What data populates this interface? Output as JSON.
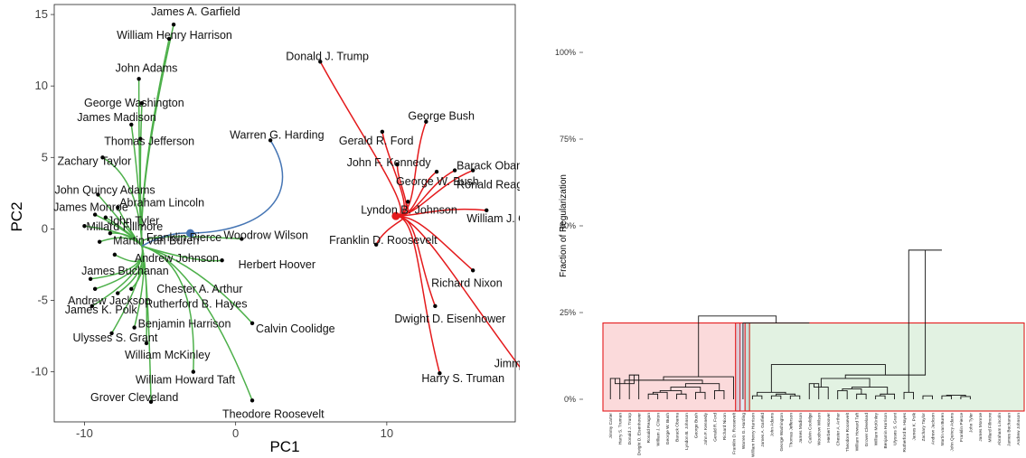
{
  "chart_data": [
    {
      "type": "scatter",
      "xlabel": "PC1",
      "ylabel": "PC2",
      "xlim": [
        -12,
        18.5
      ],
      "ylim": [
        -13.5,
        15.7
      ],
      "xticks": [
        -10,
        0,
        10
      ],
      "yticks": [
        -10,
        -5,
        0,
        5,
        10,
        15
      ],
      "colors": {
        "green": "#4db04a",
        "blue": "#4575b4",
        "red": "#e41a1c"
      },
      "points": [
        {
          "label": "James A. Garfield",
          "x": -4.1,
          "y": 14.3,
          "group": "green",
          "dx": -25,
          "dy": -10
        },
        {
          "label": "William Henry Harrison",
          "x": -4.4,
          "y": 13.3,
          "group": "green",
          "dx": -58,
          "dy": 0
        },
        {
          "label": "John Adams",
          "x": -6.4,
          "y": 10.5,
          "group": "green",
          "dx": -26,
          "dy": -8
        },
        {
          "label": "George Washington",
          "x": -6.2,
          "y": 8.8,
          "group": "green",
          "dx": -64,
          "dy": 4
        },
        {
          "label": "James Madison",
          "x": -6.9,
          "y": 7.3,
          "group": "green",
          "dx": -60,
          "dy": -4
        },
        {
          "label": "Thomas Jefferson",
          "x": -6.3,
          "y": 6.3,
          "group": "green",
          "dx": -40,
          "dy": 7
        },
        {
          "label": "Zachary Taylor",
          "x": -8.8,
          "y": 5.0,
          "group": "green",
          "dx": -50,
          "dy": 8
        },
        {
          "label": "John Quincy Adams",
          "x": -9.1,
          "y": 2.4,
          "group": "green",
          "dx": -48,
          "dy": -1
        },
        {
          "label": "James Monroe",
          "x": -9.3,
          "y": 1.0,
          "group": "green",
          "dx": -46,
          "dy": -4
        },
        {
          "label": "Abraham Lincoln",
          "x": -7.8,
          "y": 1.5,
          "group": "green",
          "dx": 2,
          "dy": -1
        },
        {
          "label": "John Tyler",
          "x": -8.6,
          "y": 0.8,
          "group": "green",
          "dx": 2,
          "dy": 8
        },
        {
          "label": "Millard Fillmore",
          "x": -10.0,
          "y": 0.2,
          "group": "green",
          "dx": 2,
          "dy": 5
        },
        {
          "label": "Franklin Pierce",
          "x": -8.3,
          "y": -0.3,
          "group": "green",
          "dx": 40,
          "dy": 9
        },
        {
          "label": "Martin van Buren",
          "x": -9.0,
          "y": -0.9,
          "group": "green",
          "dx": 15,
          "dy": 3
        },
        {
          "label": "Woodrow Wilson",
          "x": 0.4,
          "y": -0.7,
          "group": "green",
          "dx": -20,
          "dy": 0
        },
        {
          "label": "Andrew Johnson",
          "x": -8.0,
          "y": -1.8,
          "group": "green",
          "dx": 22,
          "dy": 8
        },
        {
          "label": "Herbert Hoover",
          "x": -0.9,
          "y": -2.2,
          "group": "green",
          "dx": 18,
          "dy": 9
        },
        {
          "label": "James Buchanan",
          "x": -9.6,
          "y": -3.5,
          "group": "green",
          "dx": -10,
          "dy": -5
        },
        {
          "label": "Andrew Jackson",
          "x": -9.3,
          "y": -4.2,
          "group": "green",
          "dx": -30,
          "dy": 17
        },
        {
          "label": "Chester A. Arthur",
          "x": -6.9,
          "y": -4.2,
          "group": "green",
          "dx": 28,
          "dy": 4
        },
        {
          "label": "Rutherford B. Hayes",
          "x": -7.8,
          "y": -4.5,
          "group": "green",
          "dx": 30,
          "dy": 16
        },
        {
          "label": "James K. Polk",
          "x": -9.5,
          "y": -5.4,
          "group": "green",
          "dx": -30,
          "dy": 8
        },
        {
          "label": "Calvin Coolidge",
          "x": 1.1,
          "y": -6.6,
          "group": "green",
          "dx": 4,
          "dy": 10
        },
        {
          "label": "Benjamin Harrison",
          "x": -6.7,
          "y": -6.9,
          "group": "green",
          "dx": 4,
          "dy": 0
        },
        {
          "label": "Ulysses S. Grant",
          "x": -8.2,
          "y": -7.3,
          "group": "green",
          "dx": -43,
          "dy": 9
        },
        {
          "label": "William McKinley",
          "x": -5.9,
          "y": -8.0,
          "group": "green",
          "dx": -24,
          "dy": 17
        },
        {
          "label": "William Howard Taft",
          "x": -2.8,
          "y": -10.0,
          "group": "green",
          "dx": -64,
          "dy": 13
        },
        {
          "label": "Grover Cleveland",
          "x": -5.6,
          "y": -12.1,
          "group": "green",
          "dx": -67,
          "dy": -1
        },
        {
          "label": "Theodore Roosevelt",
          "x": 1.1,
          "y": -12.0,
          "group": "green",
          "dx": -33,
          "dy": 19
        },
        {
          "label": "Warren G. Harding",
          "x": 2.3,
          "y": 6.2,
          "group": "blue",
          "dx": -45,
          "dy": -2
        },
        {
          "label": "Donald J. Trump",
          "x": 5.6,
          "y": 11.7,
          "group": "red",
          "dx": -38,
          "dy": -2
        },
        {
          "label": "George Bush",
          "x": 12.6,
          "y": 7.5,
          "group": "red",
          "dx": -20,
          "dy": -2
        },
        {
          "label": "Gerald R. Ford",
          "x": 9.7,
          "y": 6.8,
          "group": "red",
          "dx": -48,
          "dy": 14
        },
        {
          "label": "John F. Kennedy",
          "x": 10.7,
          "y": 4.5,
          "group": "red",
          "dx": -56,
          "dy": 2
        },
        {
          "label": "Barack Obama",
          "x": 14.5,
          "y": 4.1,
          "group": "red",
          "dx": 2,
          "dy": -1
        },
        {
          "label": "George W. Bush",
          "x": 13.3,
          "y": 4.0,
          "group": "red",
          "dx": -45,
          "dy": 15
        },
        {
          "label": "Ronald Reagan",
          "x": 15.7,
          "y": 4.1,
          "group": "red",
          "dx": -18,
          "dy": 20
        },
        {
          "label": "Lyndon B. Johnson",
          "x": 11.4,
          "y": 1.9,
          "group": "red",
          "dx": -52,
          "dy": 13
        },
        {
          "label": "William J. Clinton",
          "x": 16.6,
          "y": 1.3,
          "group": "red",
          "dx": -22,
          "dy": 13
        },
        {
          "label": "Franklin D. Roosevelt",
          "x": 9.3,
          "y": -1.1,
          "group": "red",
          "dx": -52,
          "dy": -1
        },
        {
          "label": "Richard Nixon",
          "x": 15.7,
          "y": -2.9,
          "group": "red",
          "dx": -46,
          "dy": 18
        },
        {
          "label": "Dwight D. Eisenhower",
          "x": 13.2,
          "y": -5.4,
          "group": "red",
          "dx": -45,
          "dy": 18
        },
        {
          "label": "Harry S. Truman",
          "x": 13.5,
          "y": -10.1,
          "group": "red",
          "dx": -20,
          "dy": 10
        },
        {
          "label": "Jimmy Carter",
          "x": 18.9,
          "y": -9.8,
          "group": "red",
          "dx": -30,
          "dy": -2
        }
      ],
      "centers": [
        {
          "x": -3.0,
          "y": -0.3,
          "color": "#4575b4"
        },
        {
          "x": 10.6,
          "y": 0.9,
          "color": "#e41a1c"
        }
      ]
    },
    {
      "type": "dendrogram",
      "ylabel": "Fraction of Regularization",
      "ylim": [
        0,
        100
      ],
      "yticks": [
        "0%",
        "25%",
        "50%",
        "75%",
        "100%"
      ],
      "leaves": [
        "Jimmy Carter",
        "Harry S. Truman",
        "Donald J. Trump",
        "Dwight D. Eisenhower",
        "Ronald Reagan",
        "William J. Clinton",
        "George W. Bush",
        "Barack Obama",
        "Lyndon B. Johnson",
        "George Bush",
        "John F. Kennedy",
        "Gerald R. Ford",
        "Richard Nixon",
        "Franklin D. Roosevelt",
        "Warren G. Harding",
        "William Henry Harrison",
        "James A. Garfield",
        "John Adams",
        "George Washington",
        "Thomas Jefferson",
        "James Madison",
        "Calvin Coolidge",
        "Woodrow Wilson",
        "Herbert Hoover",
        "Chester A. Arthur",
        "Theodore Roosevelt",
        "William Howard Taft",
        "Grover Cleveland",
        "William McKinley",
        "Benjamin Harrison",
        "Ulysses S. Grant",
        "Rutherford B. Hayes",
        "James K. Polk",
        "Zachary Taylor",
        "Andrew Jackson",
        "Martin van Buren",
        "John Quincy Adams",
        "Franklin Pierce",
        "John Tyler",
        "James Monroe",
        "Millard Fillmore",
        "Abraham Lincoln",
        "James Buchanan",
        "Andrew Johnson"
      ],
      "cluster_boxes": [
        {
          "from": 0,
          "to": 13,
          "height": 22,
          "color": "red"
        },
        {
          "from": 14,
          "to": 14,
          "height": 22,
          "color": "blue"
        },
        {
          "from": 15,
          "to": 43,
          "height": 22,
          "color": "green"
        }
      ],
      "tree": [
        [
          [
            [
              [
                [
                  0,
                  1,
                  6
                ],
                [
                  2,
                  3,
                  7
                ],
                4.5
              ],
              [
                [
                  [
                    [
                      [
                        4,
                        5,
                        1.5
                      ],
                      6,
                      2
                    ],
                    [
                      7,
                      8,
                      1.5
                    ],
                    2.5
                  ],
                  [
                    9,
                    10,
                    2
                  ],
                  3.5
                ],
                [
                  11,
                  12,
                  2.5
                ],
                4.5
              ],
              5.5
            ],
            13,
            6.5
          ],
          [
            14,
            [
              [
                [
                  [
                    15,
                    16,
                    1
                  ],
                  [
                    [
                      17,
                      18,
                      1
                    ],
                    [
                      19,
                      20,
                      1
                    ],
                    1.5
                  ],
                  2
                ],
                [
                  [
                    [
                      [
                        21,
                        22,
                        4.5
                      ],
                      23,
                      3.5
                    ],
                    [
                      [
                        [
                          24,
                          25,
                          2.5
                        ],
                        [
                          26,
                          27,
                          1.5
                        ],
                        3
                      ],
                      [
                        [
                          28,
                          29,
                          1
                        ],
                        30,
                        1.5
                      ],
                      3.5
                    ],
                    6
                  ],
                  [
                    [
                      31,
                      32,
                      2
                    ],
                    [
                      [
                        33,
                        34,
                        1
                      ],
                      [
                        [
                          35,
                          36,
                          1
                        ],
                        [
                          37,
                          38,
                          0.8
                        ],
                        1.2
                      ],
                      [
                        [
                          39,
                          40,
                          1
                        ],
                        [
                          41,
                          42,
                          1
                        ],
                        1.5
                      ],
                      2.5
                    ],
                    43,
                    3
                  ],
                  7
                ],
                10
              ],
              19
            ],
            22
          ],
          24
        ],
        100
      ]
    }
  ]
}
